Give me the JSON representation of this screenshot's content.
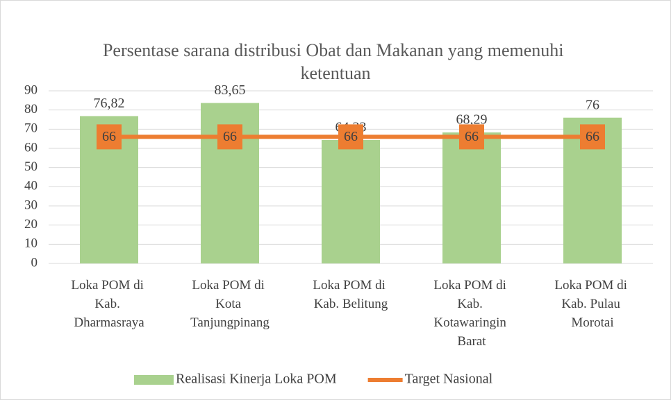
{
  "chart_data": {
    "type": "bar",
    "title": "Persentase sarana distribusi Obat dan Makanan yang memenuhi ketentuan",
    "categories": [
      "Loka POM di Kab. Dharmasraya",
      "Loka POM di Kota Tanjungpinang",
      "Loka POM di Kab. Belitung",
      "Loka POM di Kab. Kotawaringin Barat",
      "Loka POM di Kab. Pulau Morotai"
    ],
    "series": [
      {
        "name": "Realisasi Kinerja Loka POM",
        "type": "bar",
        "color": "#a9d18e",
        "values": [
          76.82,
          83.65,
          64.33,
          68.29,
          76
        ],
        "value_labels": [
          "76,82",
          "83,65",
          "64,33",
          "68,29",
          "76"
        ]
      },
      {
        "name": "Target Nasional",
        "type": "line",
        "color": "#ed7d31",
        "values": [
          66,
          66,
          66,
          66,
          66
        ]
      }
    ],
    "ylim": [
      0,
      90
    ],
    "yticks": [
      0,
      10,
      20,
      30,
      40,
      50,
      60,
      70,
      80,
      90
    ],
    "grid": true,
    "legend": "bottom"
  }
}
